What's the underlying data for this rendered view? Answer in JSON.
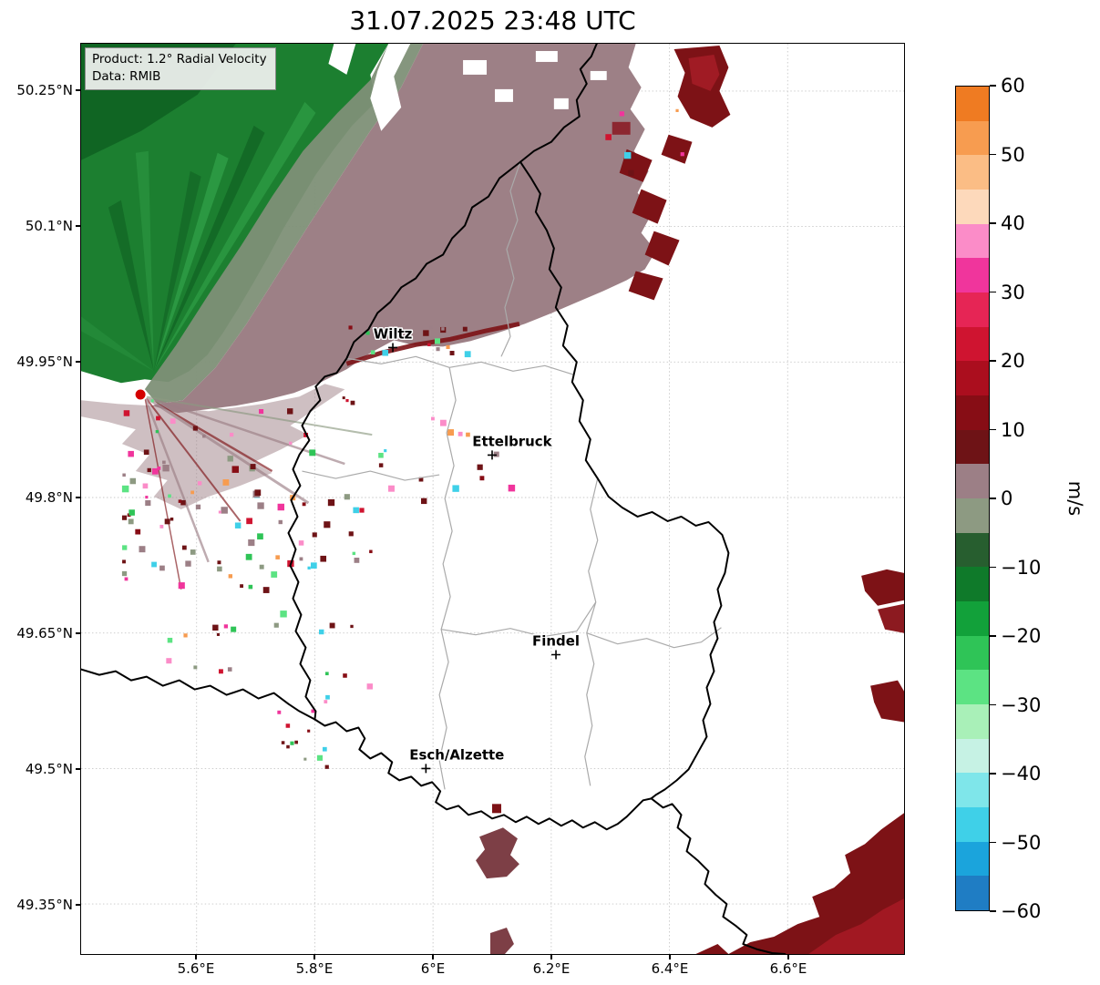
{
  "title": "31.07.2025 23:48 UTC",
  "info_box": {
    "line1": "Product: 1.2° Radial Velocity",
    "line2": "Data: RMIB"
  },
  "axes": {
    "x_tick_labels": [
      "5.6°E",
      "5.8°E",
      "6°E",
      "6.2°E",
      "6.4°E",
      "6.6°E"
    ],
    "x_tick_lon": [
      5.6,
      5.8,
      6.0,
      6.2,
      6.4,
      6.6
    ],
    "y_tick_labels": [
      "50.25°N",
      "50.1°N",
      "49.95°N",
      "49.8°N",
      "49.65°N",
      "49.5°N",
      "49.35°N"
    ],
    "y_tick_lat": [
      50.25,
      50.1,
      49.95,
      49.8,
      49.65,
      49.5,
      49.35
    ]
  },
  "colorbar": {
    "label": "m/s",
    "tick_labels": [
      "60",
      "50",
      "40",
      "30",
      "20",
      "10",
      "0",
      "−10",
      "−20",
      "−30",
      "−40",
      "−50",
      "−60"
    ],
    "tick_values": [
      60,
      50,
      40,
      30,
      20,
      10,
      0,
      -10,
      -20,
      -30,
      -40,
      -50,
      -60
    ],
    "value_range": [
      -60,
      60
    ],
    "band_step": 5,
    "band_colors_top_to_bottom": [
      "#ef7b22",
      "#f79c50",
      "#fbbd85",
      "#fdd9bb",
      "#fb8cc8",
      "#f0359c",
      "#e62555",
      "#cf1430",
      "#ab0e1e",
      "#870d15",
      "#6e1316",
      "#9c7f86",
      "#8d9a82",
      "#275e2f",
      "#0f7a2a",
      "#12a13a",
      "#2fc457",
      "#5ce383",
      "#a9f0b8",
      "#c6f2e4",
      "#7fe6ea",
      "#3fd0e8",
      "#1ba4dc",
      "#1f7dc4"
    ]
  },
  "cities": [
    {
      "name": "Wiltz",
      "lon": 5.932,
      "lat": 49.966
    },
    {
      "name": "Ettelbruck",
      "lon": 6.1,
      "lat": 49.847
    },
    {
      "name": "Findel",
      "lon": 6.208,
      "lat": 49.626
    },
    {
      "name": "Esch/Alzette",
      "lon": 5.988,
      "lat": 49.5
    }
  ],
  "radar_site": {
    "lon": 5.505,
    "lat": 49.914,
    "marker_color": "#d40000"
  },
  "chart_data": {
    "type": "heatmap",
    "title": "31.07.2025 23:48 UTC",
    "product": "1.2° Radial Velocity",
    "data_source": "RMIB",
    "units": "m/s",
    "x_axis": {
      "tick_labels": [
        "5.6°E",
        "5.8°E",
        "6°E",
        "6.2°E",
        "6.4°E",
        "6.6°E"
      ],
      "tick_values_deg_east": [
        5.6,
        5.8,
        6.0,
        6.2,
        6.4,
        6.6
      ],
      "range_deg_east": [
        5.41,
        6.8
      ]
    },
    "y_axis": {
      "tick_labels": [
        "50.25°N",
        "50.1°N",
        "49.95°N",
        "49.8°N",
        "49.65°N",
        "49.5°N",
        "49.35°N"
      ],
      "tick_values_deg_north": [
        50.25,
        50.1,
        49.95,
        49.8,
        49.65,
        49.5,
        49.35
      ],
      "range_deg_north": [
        49.3,
        50.3
      ]
    },
    "color_scale": {
      "min": -60,
      "max": 60,
      "units": "m/s",
      "negative_colors": "blue / cyan / green (motion toward radar)",
      "positive_colors": "dark red / red / pink / orange (motion away from radar)",
      "near_zero_colors": "gray-green (just below 0), gray-mauve (just above 0)"
    },
    "radar_site": {
      "lon": 5.505,
      "lat": 49.914
    },
    "cities": [
      {
        "name": "Wiltz",
        "lon": 5.932,
        "lat": 49.966
      },
      {
        "name": "Ettelbruck",
        "lon": 6.1,
        "lat": 49.847
      },
      {
        "name": "Findel",
        "lon": 6.208,
        "lat": 49.626
      },
      {
        "name": "Esch/Alzette",
        "lon": 5.988,
        "lat": 49.5
      }
    ],
    "velocity_regions": [
      {
        "area": "northwest quadrant",
        "description": "broad negative-velocity fan (greens), roughly -20 to -2 m/s"
      },
      {
        "area": "north and northeast band",
        "description": "weak positive velocities (gray-mauve), roughly +2 to +8 m/s"
      },
      {
        "area": "far northeast edge",
        "description": "ragged dark-red patches, about +10 to +20 m/s"
      },
      {
        "area": "east edge and southeast corner",
        "description": "dark-red patches, about +10 to +25 m/s"
      },
      {
        "area": "center and south of Luxembourg",
        "description": "no echo (white)"
      },
      {
        "area": "around radar site",
        "description": "scattered noisy pixels of mixed velocities (speckle)"
      }
    ]
  }
}
